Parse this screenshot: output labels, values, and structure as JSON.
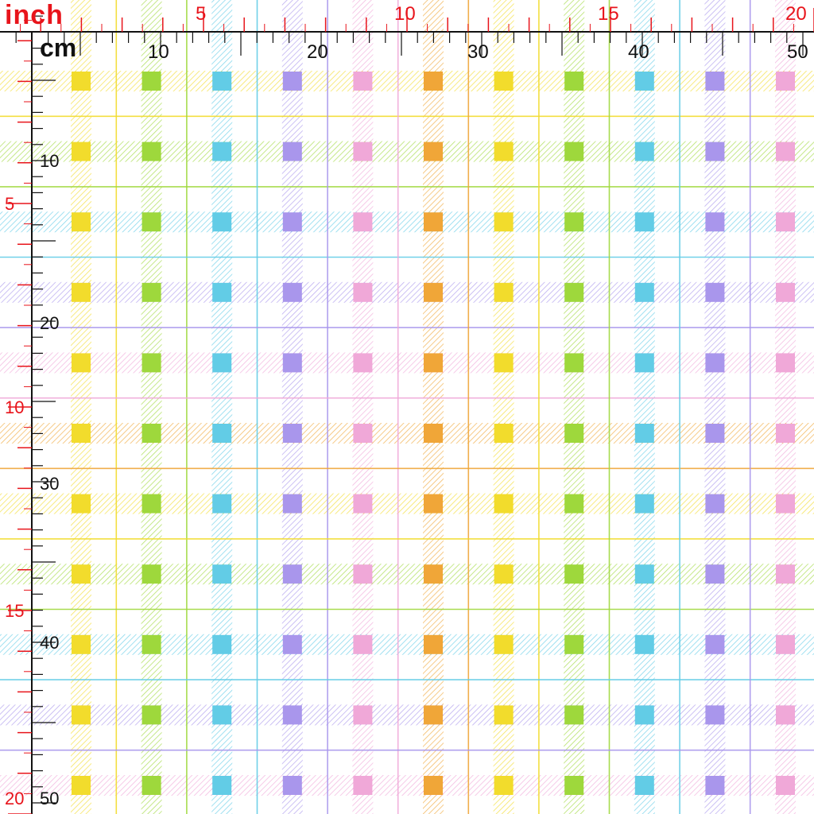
{
  "ruler": {
    "inch_label": "inch",
    "cm_label": "cm",
    "inch_ticks_h": [
      "5",
      "10",
      "15",
      "20"
    ],
    "cm_ticks_h": [
      "10",
      "20",
      "30",
      "40",
      "50"
    ],
    "inch_ticks_v": [
      "5",
      "10",
      "15",
      "20"
    ],
    "cm_ticks_v": [
      "10",
      "20",
      "30",
      "40",
      "50"
    ],
    "inch_color": "#e8141b",
    "cm_color": "#111111"
  },
  "pattern": {
    "name": "pastel plaid",
    "background": "#ffffff",
    "stripe_colors": [
      "#f2dc2c",
      "#9ed83c",
      "#62cce6",
      "#a996ec",
      "#f0a8d8",
      "#f0a638",
      "#f2dc2c",
      "#9ed83c",
      "#62cce6",
      "#a996ec",
      "#f0a8d8"
    ]
  }
}
